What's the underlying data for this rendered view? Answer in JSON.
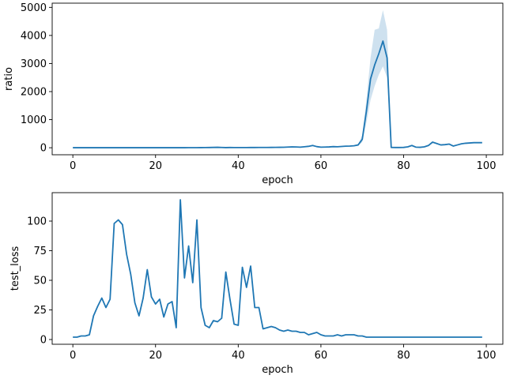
{
  "colors": {
    "line": "#1f77b4",
    "band": "#1f77b4"
  },
  "chart_data": [
    {
      "type": "line",
      "xlabel": "epoch",
      "ylabel": "ratio",
      "xlim": [
        -5,
        104
      ],
      "ylim": [
        -250,
        5150
      ],
      "xticks": [
        0,
        20,
        40,
        60,
        80,
        100
      ],
      "yticks": [
        0,
        1000,
        2000,
        3000,
        4000,
        5000
      ],
      "grid": false,
      "series": [
        {
          "x": [
            0,
            1,
            2,
            3,
            4,
            5,
            6,
            7,
            8,
            9,
            10,
            11,
            12,
            13,
            14,
            15,
            16,
            17,
            18,
            19,
            20,
            21,
            22,
            23,
            24,
            25,
            26,
            27,
            28,
            29,
            30,
            31,
            32,
            33,
            34,
            35,
            36,
            37,
            38,
            39,
            40,
            41,
            42,
            43,
            44,
            45,
            46,
            47,
            48,
            49,
            50,
            51,
            52,
            53,
            54,
            55,
            56,
            57,
            58,
            59,
            60,
            61,
            62,
            63,
            64,
            65,
            66,
            67,
            68,
            69,
            70,
            71,
            72,
            73,
            74,
            75,
            76,
            77,
            78,
            79,
            80,
            81,
            82,
            83,
            84,
            85,
            86,
            87,
            88,
            89,
            90,
            91,
            92,
            93,
            94,
            95,
            96,
            97,
            98,
            99
          ],
          "values": [
            2,
            2,
            2,
            2,
            2,
            2,
            2,
            2,
            2,
            2,
            2,
            2,
            2,
            2,
            2,
            2,
            2,
            2,
            2,
            2,
            2,
            2,
            2,
            2,
            2,
            2,
            2,
            2,
            3,
            3,
            4,
            5,
            6,
            8,
            12,
            15,
            10,
            5,
            8,
            6,
            6,
            7,
            6,
            8,
            9,
            10,
            10,
            11,
            12,
            14,
            15,
            18,
            25,
            30,
            28,
            20,
            35,
            50,
            80,
            40,
            20,
            25,
            30,
            40,
            35,
            45,
            55,
            60,
            70,
            100,
            300,
            1300,
            2450,
            2950,
            3350,
            3800,
            3200,
            10,
            8,
            8,
            12,
            30,
            80,
            20,
            15,
            30,
            80,
            200,
            150,
            100,
            110,
            130,
            60,
            100,
            140,
            160,
            170,
            180,
            180,
            180
          ],
          "lower": [
            2,
            2,
            2,
            2,
            2,
            2,
            2,
            2,
            2,
            2,
            2,
            2,
            2,
            2,
            2,
            2,
            2,
            2,
            2,
            2,
            2,
            2,
            2,
            2,
            2,
            2,
            2,
            2,
            3,
            3,
            4,
            5,
            6,
            8,
            12,
            15,
            10,
            5,
            8,
            6,
            6,
            7,
            6,
            8,
            9,
            10,
            10,
            11,
            12,
            14,
            15,
            18,
            25,
            30,
            28,
            20,
            35,
            50,
            80,
            40,
            20,
            25,
            30,
            40,
            35,
            45,
            55,
            60,
            70,
            80,
            200,
            900,
            1700,
            2200,
            2600,
            2900,
            2500,
            10,
            8,
            8,
            12,
            30,
            80,
            20,
            15,
            30,
            80,
            200,
            150,
            100,
            110,
            130,
            60,
            100,
            140,
            160,
            170,
            180,
            180,
            180
          ],
          "upper": [
            2,
            2,
            2,
            2,
            2,
            2,
            2,
            2,
            2,
            2,
            2,
            2,
            2,
            2,
            2,
            2,
            2,
            2,
            2,
            2,
            2,
            2,
            2,
            2,
            2,
            2,
            2,
            2,
            3,
            3,
            4,
            5,
            6,
            8,
            12,
            15,
            10,
            5,
            8,
            6,
            6,
            7,
            6,
            8,
            9,
            10,
            10,
            11,
            12,
            14,
            15,
            18,
            25,
            30,
            28,
            20,
            35,
            50,
            80,
            40,
            20,
            25,
            30,
            40,
            35,
            45,
            55,
            60,
            70,
            120,
            450,
            1700,
            3200,
            4200,
            4250,
            4900,
            4200,
            10,
            8,
            8,
            12,
            30,
            80,
            20,
            15,
            30,
            80,
            200,
            150,
            100,
            110,
            130,
            60,
            100,
            140,
            160,
            170,
            180,
            180,
            180
          ]
        }
      ]
    },
    {
      "type": "line",
      "xlabel": "epoch",
      "ylabel": "test_loss",
      "xlim": [
        -5,
        104
      ],
      "ylim": [
        -4,
        124
      ],
      "xticks": [
        0,
        20,
        40,
        60,
        80,
        100
      ],
      "yticks": [
        0,
        25,
        50,
        75,
        100
      ],
      "grid": false,
      "series": [
        {
          "x": [
            0,
            1,
            2,
            3,
            4,
            5,
            6,
            7,
            8,
            9,
            10,
            11,
            12,
            13,
            14,
            15,
            16,
            17,
            18,
            19,
            20,
            21,
            22,
            23,
            24,
            25,
            26,
            27,
            28,
            29,
            30,
            31,
            32,
            33,
            34,
            35,
            36,
            37,
            38,
            39,
            40,
            41,
            42,
            43,
            44,
            45,
            46,
            47,
            48,
            49,
            50,
            51,
            52,
            53,
            54,
            55,
            56,
            57,
            58,
            59,
            60,
            61,
            62,
            63,
            64,
            65,
            66,
            67,
            68,
            69,
            70,
            71,
            72,
            73,
            74,
            75,
            76,
            77,
            78,
            79,
            80,
            81,
            82,
            83,
            84,
            85,
            86,
            87,
            88,
            89,
            90,
            91,
            92,
            93,
            94,
            95,
            96,
            97,
            98,
            99
          ],
          "values": [
            2,
            2,
            3,
            3,
            4,
            20,
            28,
            35,
            27,
            34,
            98,
            101,
            97,
            72,
            55,
            31,
            20,
            35,
            59,
            36,
            30,
            34,
            19,
            30,
            32,
            10,
            118,
            52,
            79,
            48,
            101,
            27,
            12,
            10,
            16,
            15,
            18,
            57,
            34,
            13,
            12,
            61,
            44,
            62,
            27,
            27,
            9,
            10,
            11,
            10,
            8,
            7,
            8,
            7,
            7,
            6,
            6,
            4,
            5,
            6,
            4,
            3,
            3,
            3,
            4,
            3,
            4,
            4,
            4,
            3,
            3,
            2,
            2,
            2,
            2,
            2,
            2,
            2,
            2,
            2,
            2,
            2,
            2,
            2,
            2,
            2,
            2,
            2,
            2,
            2,
            2,
            2,
            2,
            2,
            2,
            2,
            2,
            2,
            2,
            2
          ]
        }
      ]
    }
  ]
}
